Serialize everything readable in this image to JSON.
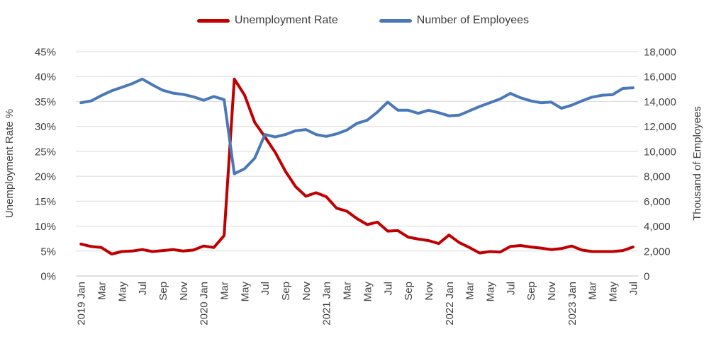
{
  "chart_data": {
    "type": "line",
    "title": "",
    "legend_position": "top-center",
    "grid": "horizontal",
    "categories": [
      "2019 Jan",
      "2019 Feb",
      "2019 Mar",
      "2019 Apr",
      "2019 May",
      "2019 Jun",
      "2019 Jul",
      "2019 Aug",
      "2019 Sep",
      "2019 Oct",
      "2019 Nov",
      "2019 Dec",
      "2020 Jan",
      "2020 Feb",
      "2020 Mar",
      "2020 Apr",
      "2020 May",
      "2020 Jun",
      "2020 Jul",
      "2020 Aug",
      "2020 Sep",
      "2020 Oct",
      "2020 Nov",
      "2020 Dec",
      "2021 Jan",
      "2021 Feb",
      "2021 Mar",
      "2021 Apr",
      "2021 May",
      "2021 Jun",
      "2021 Jul",
      "2021 Aug",
      "2021 Sep",
      "2021 Oct",
      "2021 Nov",
      "2021 Dec",
      "2022 Jan",
      "2022 Feb",
      "2022 Mar",
      "2022 Apr",
      "2022 May",
      "2022 Jun",
      "2022 Jul",
      "2022 Aug",
      "2022 Sep",
      "2022 Oct",
      "2022 Nov",
      "2022 Dec",
      "2023 Jan",
      "2023 Feb",
      "2023 Mar",
      "2023 Apr",
      "2023 May",
      "2023 Jun",
      "2023 Jul"
    ],
    "x_tick_labels": [
      "2019 Jan",
      "Mar",
      "May",
      "Jul",
      "Sep",
      "Nov",
      "2020 Jan",
      "Mar",
      "May",
      "Jul",
      "Sep",
      "Nov",
      "2021 Jan",
      "Mar",
      "May",
      "Jul",
      "Sep",
      "Nov",
      "2022 Jan",
      "Mar",
      "May",
      "Jul",
      "Sep",
      "Nov",
      "2023 Jan",
      "Mar",
      "May",
      "Jul"
    ],
    "series": [
      {
        "name": "Unemployment Rate",
        "axis": "left",
        "color": "#C00000",
        "values": [
          6.4,
          5.9,
          5.7,
          4.4,
          4.9,
          5.0,
          5.3,
          4.9,
          5.1,
          5.3,
          5.0,
          5.2,
          6.0,
          5.7,
          8.1,
          39.5,
          36.3,
          30.8,
          27.9,
          24.8,
          21.0,
          17.9,
          16.0,
          16.7,
          15.9,
          13.6,
          13.0,
          11.5,
          10.3,
          10.8,
          9.0,
          9.1,
          7.8,
          7.4,
          7.1,
          6.5,
          8.2,
          6.7,
          5.7,
          4.6,
          4.9,
          4.8,
          5.9,
          6.1,
          5.8,
          5.6,
          5.3,
          5.5,
          6.0,
          5.2,
          4.9,
          4.9,
          4.9,
          5.1,
          5.8
        ]
      },
      {
        "name": "Number of Employees",
        "axis": "right",
        "color": "#4B78B9",
        "values": [
          13900,
          14050,
          14480,
          14860,
          15140,
          15430,
          15800,
          15330,
          14900,
          14670,
          14570,
          14380,
          14100,
          14400,
          14150,
          8200,
          8600,
          9450,
          11350,
          11150,
          11350,
          11650,
          11750,
          11350,
          11200,
          11400,
          11700,
          12250,
          12500,
          13150,
          13950,
          13300,
          13300,
          13050,
          13300,
          13100,
          12850,
          12900,
          13250,
          13600,
          13900,
          14200,
          14650,
          14300,
          14050,
          13900,
          13950,
          13450,
          13700,
          14050,
          14350,
          14500,
          14550,
          15050,
          15100
        ]
      }
    ],
    "left_axis": {
      "title": "Unemployment Rate %",
      "min": 0,
      "max": 45,
      "step": 5,
      "tick_labels": [
        "0%",
        "5%",
        "10%",
        "15%",
        "20%",
        "25%",
        "30%",
        "35%",
        "40%",
        "45%"
      ]
    },
    "right_axis": {
      "title": "Thousand of Employees",
      "min": 0,
      "max": 18000,
      "step": 2000,
      "tick_labels": [
        "0",
        "2,000",
        "4,000",
        "6,000",
        "8,000",
        "10,000",
        "12,000",
        "14,000",
        "16,000",
        "18,000"
      ]
    },
    "legend": {
      "unemployment_label": "Unemployment Rate",
      "employees_label": "Number of Employees"
    },
    "colors": {
      "gridline": "#D9D9D9",
      "axis_line": "#BFBFBF",
      "text": "#404040"
    }
  }
}
